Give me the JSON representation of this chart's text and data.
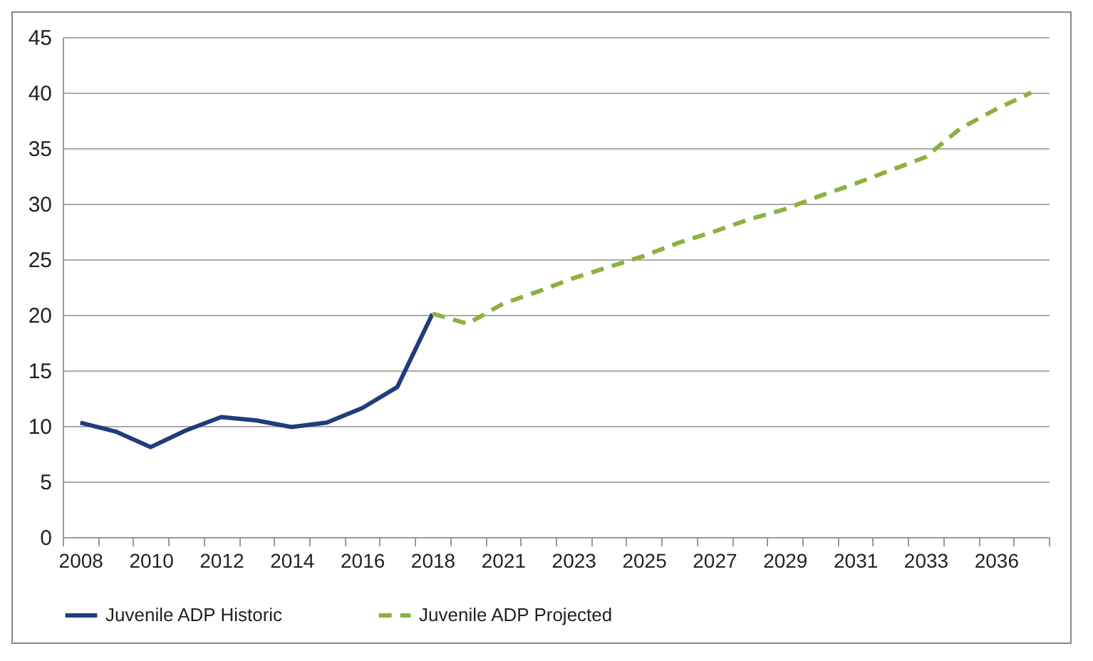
{
  "chart_data": {
    "type": "line",
    "categories": [
      "2008",
      null,
      "2010",
      null,
      "2012",
      null,
      "2014",
      null,
      "2016",
      null,
      "2018",
      null,
      "2021",
      null,
      "2023",
      null,
      "2025",
      null,
      "2027",
      null,
      "2029",
      null,
      "2031",
      null,
      "2033",
      null,
      "2036",
      null
    ],
    "series": [
      {
        "name": "Juvenile ADP Historic",
        "color": "#1f3d7a",
        "line_style": "solid",
        "values": [
          10.3,
          9.5,
          8.1,
          9.6,
          10.8,
          10.5,
          9.9,
          10.3,
          11.6,
          13.5,
          20.1,
          null,
          null,
          null,
          null,
          null,
          null,
          null,
          null,
          null,
          null,
          null,
          null,
          null,
          null,
          null,
          null,
          null
        ]
      },
      {
        "name": "Juvenile ADP Projected",
        "color": "#8db040",
        "line_style": "dashed",
        "values": [
          null,
          null,
          null,
          null,
          null,
          null,
          null,
          null,
          null,
          null,
          20.1,
          19.2,
          21.0,
          22.1,
          23.3,
          24.3,
          25.3,
          26.5,
          27.5,
          28.6,
          29.5,
          30.7,
          31.8,
          33.0,
          34.2,
          36.8,
          38.5,
          40.0
        ]
      }
    ],
    "ylim": [
      0,
      45
    ],
    "yticks": [
      0,
      5,
      10,
      15,
      20,
      25,
      30,
      35,
      40,
      45
    ],
    "grid": "y",
    "legend": "bottom",
    "marker": "none"
  }
}
